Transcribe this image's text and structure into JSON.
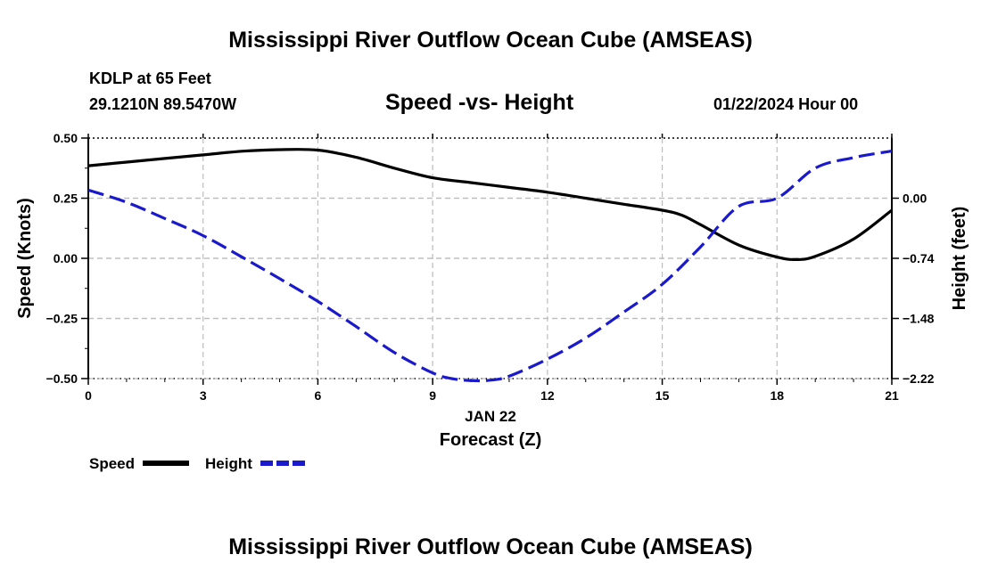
{
  "header": {
    "title_top": "Mississippi River Outflow Ocean Cube (AMSEAS)",
    "station": "KDLP at 65 Feet",
    "location": "29.1210N  89.5470W",
    "subtitle": "Speed -vs- Height",
    "date": "01/22/2024 Hour 00",
    "title_bottom": "Mississippi River Outflow Ocean Cube (AMSEAS)"
  },
  "legend": {
    "speed_label": "Speed",
    "height_label": "Height"
  },
  "colors": {
    "speed": "#000000",
    "height": "#1a1acc",
    "grid": "#bdbdbd"
  },
  "chart_data": {
    "type": "line",
    "title": "Speed -vs- Height",
    "xlabel": "Forecast (Z)",
    "xlabel_date": "JAN 22",
    "ylabel_left": "Speed (Knots)",
    "ylabel_right": "Height (feet)",
    "xlim": [
      0,
      21
    ],
    "ylim_left": [
      -0.5,
      0.5
    ],
    "ylim_right": [
      -2.22,
      0.74
    ],
    "x_ticks": [
      0,
      3,
      6,
      9,
      12,
      15,
      18,
      21
    ],
    "x_tick_labels": [
      "0",
      "3",
      "6",
      "9",
      "12",
      "15",
      "18",
      "21"
    ],
    "y_left_ticks": [
      -0.5,
      -0.25,
      0,
      0.25,
      0.5
    ],
    "y_left_tick_labels": [
      "−0.50",
      "−0.25",
      "0.00",
      "0.25",
      "0.50"
    ],
    "y_right_ticks": [
      0.0,
      -0.74,
      -1.48,
      -2.22
    ],
    "y_right_tick_labels": [
      "0.00",
      "−0.74",
      "−1.48",
      "−2.22"
    ],
    "series": [
      {
        "name": "Speed",
        "axis": "left",
        "x": [
          0,
          1,
          2,
          3,
          4,
          5,
          6,
          7,
          8,
          9,
          10,
          11,
          12,
          13,
          14,
          15,
          15.5,
          16,
          17,
          18,
          18.5,
          19,
          20,
          21
        ],
        "values": [
          0.385,
          0.4,
          0.415,
          0.43,
          0.445,
          0.452,
          0.45,
          0.42,
          0.375,
          0.335,
          0.315,
          0.295,
          0.275,
          0.25,
          0.225,
          0.2,
          0.18,
          0.14,
          0.055,
          0.005,
          -0.005,
          0.008,
          0.08,
          0.2
        ]
      },
      {
        "name": "Height",
        "axis": "right",
        "x": [
          0,
          1,
          2,
          3,
          4,
          5,
          6,
          7,
          8,
          9,
          9.5,
          10,
          10.5,
          11,
          12,
          13,
          14,
          15,
          16,
          17,
          18,
          19,
          20,
          21
        ],
        "values": [
          0.1,
          -0.05,
          -0.25,
          -0.46,
          -0.72,
          -0.99,
          -1.27,
          -1.58,
          -1.9,
          -2.15,
          -2.22,
          -2.245,
          -2.24,
          -2.19,
          -1.98,
          -1.72,
          -1.4,
          -1.06,
          -0.6,
          -0.1,
          0.0,
          0.37,
          0.5,
          0.58
        ]
      }
    ]
  }
}
